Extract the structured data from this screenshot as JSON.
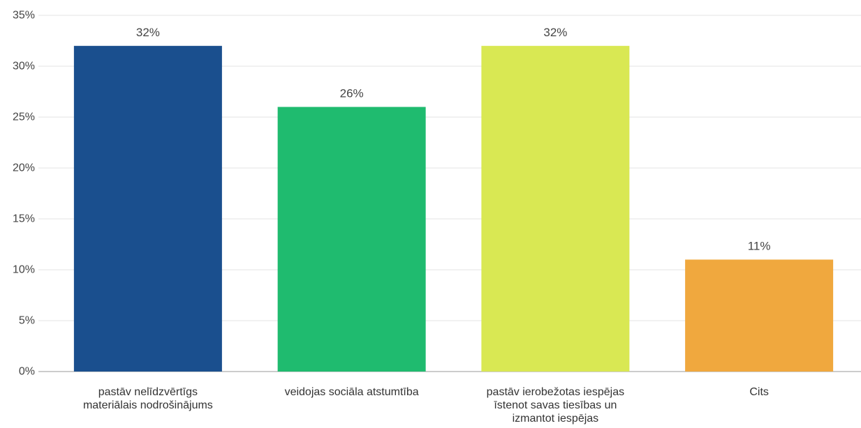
{
  "chart_data": {
    "type": "bar",
    "categories": [
      [
        "pastāv nelīdzvērtīgs",
        "materiālais nodrošinājums"
      ],
      [
        "veidojas sociāla atstumtība"
      ],
      [
        "pastāv ierobežotas iespējas",
        "īstenot savas tiesības un",
        "izmantot iespējas"
      ],
      [
        "Cits"
      ]
    ],
    "values": [
      32,
      26,
      32,
      11
    ],
    "data_labels": [
      "32%",
      "26%",
      "32%",
      "11%"
    ],
    "colors": [
      "#1a4f8e",
      "#1fbb6f",
      "#d9e853",
      "#f0a83e"
    ],
    "ylim": [
      0,
      35
    ],
    "yticks": [
      {
        "value": 0,
        "label": "0%"
      },
      {
        "value": 5,
        "label": "5%"
      },
      {
        "value": 10,
        "label": "10%"
      },
      {
        "value": 15,
        "label": "15%"
      },
      {
        "value": 20,
        "label": "20%"
      },
      {
        "value": 25,
        "label": "25%"
      },
      {
        "value": 30,
        "label": "30%"
      },
      {
        "value": 35,
        "label": "35%"
      }
    ],
    "grid": true,
    "legend": "none",
    "title": "",
    "xlabel": "",
    "ylabel": ""
  }
}
